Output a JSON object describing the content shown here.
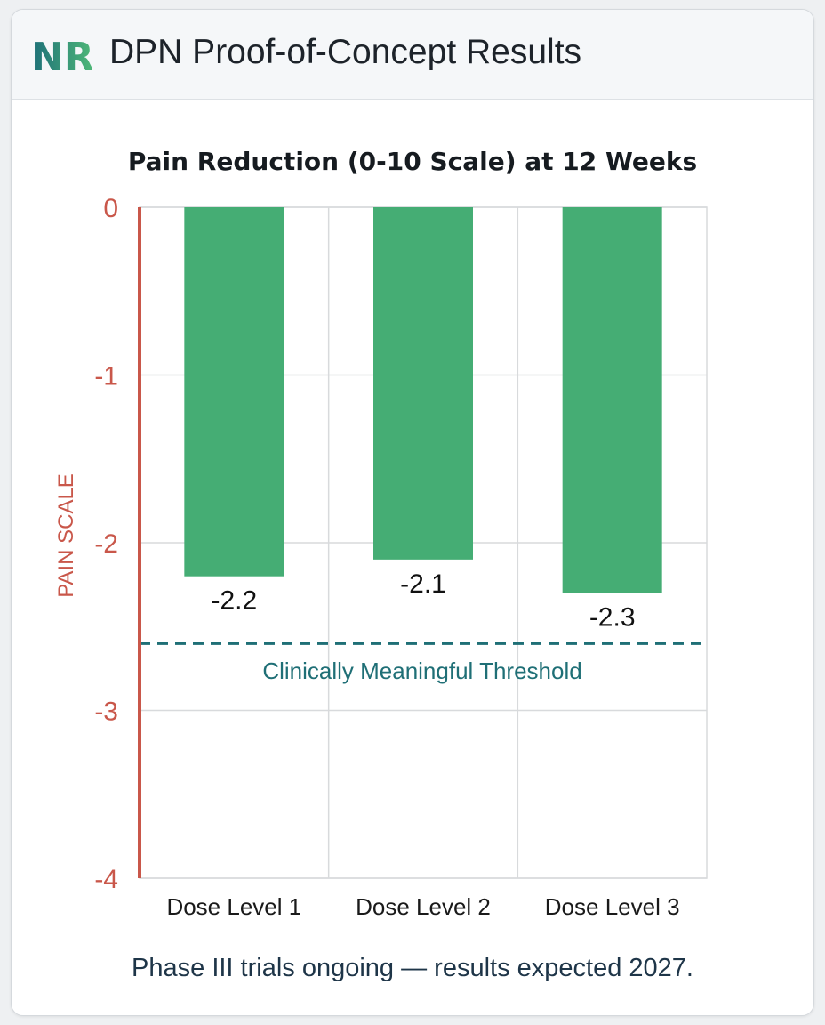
{
  "header": {
    "logo_text": "NR",
    "title": "DPN Proof-of-Concept Results"
  },
  "chart_data": {
    "type": "bar",
    "title": "Pain Reduction (0-10 Scale) at 12 Weeks",
    "xlabel": "",
    "ylabel": "PAIN SCALE",
    "categories": [
      "Dose Level 1",
      "Dose Level 2",
      "Dose Level 3"
    ],
    "values": [
      -2.2,
      -2.1,
      -2.3
    ],
    "data_labels": [
      "-2.2",
      "-2.1",
      "-2.3"
    ],
    "ylim": [
      -4,
      0
    ],
    "yticks": [
      "0",
      "-1",
      "-2",
      "-3",
      "-4"
    ],
    "grid": true,
    "threshold": {
      "value": -2.6,
      "label": "Clinically Meaningful Threshold"
    },
    "colors": {
      "bar": "#45ad74",
      "axis": "#c9574a",
      "threshold": "#1f6f76",
      "grid": "#d8dadc"
    }
  },
  "footer": {
    "note": "Phase III trials ongoing — results expected 2027."
  }
}
